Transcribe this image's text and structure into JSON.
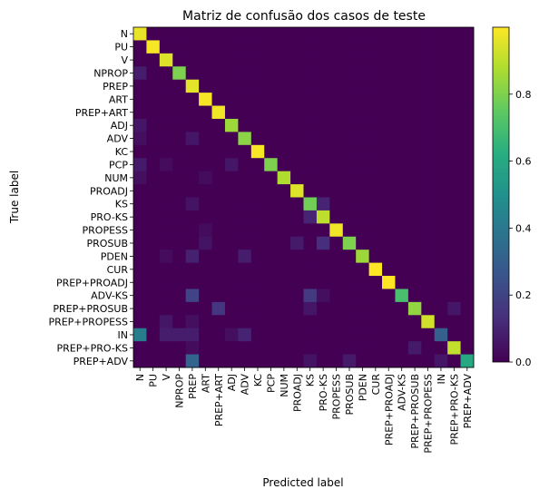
{
  "chart_data": {
    "type": "heatmap",
    "title": "Matriz de confusão dos casos de teste",
    "xlabel": "Predicted label",
    "ylabel": "True label",
    "labels": [
      "N",
      "PU",
      "V",
      "NPROP",
      "PREP",
      "ART",
      "PREP+ART",
      "ADJ",
      "ADV",
      "KC",
      "PCP",
      "NUM",
      "PROADJ",
      "KS",
      "PRO-KS",
      "PROPESS",
      "PROSUB",
      "PDEN",
      "CUR",
      "PREP+PROADJ",
      "ADV-KS",
      "PREP+PROSUB",
      "PREP+PROPESS",
      "IN",
      "PREP+PRO-KS",
      "PREP+ADV"
    ],
    "colorbar": {
      "ticks": [
        0.0,
        0.2,
        0.4,
        0.6,
        0.8
      ],
      "tick_labels": [
        "0.0",
        "0.2",
        "0.4",
        "0.6",
        "0.8"
      ],
      "vmin": 0.0,
      "vmax": 1.0
    },
    "diagonal": [
      0.97,
      0.99,
      0.95,
      0.8,
      0.96,
      0.99,
      0.98,
      0.85,
      0.82,
      0.99,
      0.8,
      0.88,
      0.95,
      0.78,
      0.9,
      0.98,
      0.8,
      0.85,
      1.0,
      1.0,
      0.7,
      0.83,
      0.93,
      0.3,
      0.91,
      0.6
    ],
    "off_diagonal": [
      {
        "row": 3,
        "col": 0,
        "value": 0.08
      },
      {
        "row": 7,
        "col": 0,
        "value": 0.06
      },
      {
        "row": 8,
        "col": 0,
        "value": 0.04
      },
      {
        "row": 8,
        "col": 4,
        "value": 0.06
      },
      {
        "row": 10,
        "col": 0,
        "value": 0.07
      },
      {
        "row": 10,
        "col": 7,
        "value": 0.06
      },
      {
        "row": 10,
        "col": 2,
        "value": 0.03
      },
      {
        "row": 11,
        "col": 0,
        "value": 0.04
      },
      {
        "row": 11,
        "col": 5,
        "value": 0.03
      },
      {
        "row": 13,
        "col": 4,
        "value": 0.05
      },
      {
        "row": 13,
        "col": 14,
        "value": 0.1
      },
      {
        "row": 14,
        "col": 13,
        "value": 0.1
      },
      {
        "row": 15,
        "col": 5,
        "value": 0.03
      },
      {
        "row": 16,
        "col": 5,
        "value": 0.05
      },
      {
        "row": 16,
        "col": 12,
        "value": 0.07
      },
      {
        "row": 16,
        "col": 14,
        "value": 0.13
      },
      {
        "row": 17,
        "col": 4,
        "value": 0.09
      },
      {
        "row": 17,
        "col": 8,
        "value": 0.08
      },
      {
        "row": 17,
        "col": 2,
        "value": 0.03
      },
      {
        "row": 20,
        "col": 4,
        "value": 0.2
      },
      {
        "row": 20,
        "col": 13,
        "value": 0.17
      },
      {
        "row": 20,
        "col": 14,
        "value": 0.04
      },
      {
        "row": 21,
        "col": 6,
        "value": 0.16
      },
      {
        "row": 21,
        "col": 13,
        "value": 0.06
      },
      {
        "row": 21,
        "col": 24,
        "value": 0.06
      },
      {
        "row": 22,
        "col": 2,
        "value": 0.06
      },
      {
        "row": 22,
        "col": 4,
        "value": 0.04
      },
      {
        "row": 23,
        "col": 0,
        "value": 0.42
      },
      {
        "row": 23,
        "col": 2,
        "value": 0.08
      },
      {
        "row": 23,
        "col": 3,
        "value": 0.08
      },
      {
        "row": 23,
        "col": 4,
        "value": 0.08
      },
      {
        "row": 23,
        "col": 8,
        "value": 0.1
      },
      {
        "row": 23,
        "col": 7,
        "value": 0.04
      },
      {
        "row": 24,
        "col": 21,
        "value": 0.07
      },
      {
        "row": 24,
        "col": 4,
        "value": 0.03
      },
      {
        "row": 25,
        "col": 4,
        "value": 0.32
      },
      {
        "row": 25,
        "col": 13,
        "value": 0.05
      },
      {
        "row": 25,
        "col": 16,
        "value": 0.07
      },
      {
        "row": 25,
        "col": 23,
        "value": 0.06
      }
    ]
  }
}
